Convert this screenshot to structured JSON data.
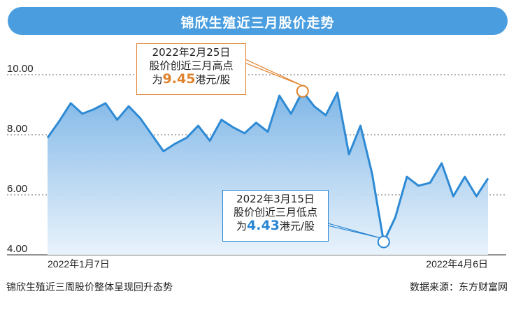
{
  "header": {
    "title": "锦欣生殖近三月股价走势"
  },
  "footer": {
    "caption": "锦欣生殖近三周股价整体呈现回升态势",
    "source": "数据来源：东方财富网"
  },
  "callouts": {
    "high": {
      "date": "2022年2月25日",
      "desc": "股价创近三月高点",
      "prefix": "为",
      "value": "9.45",
      "unit": "港元/股"
    },
    "low": {
      "date": "2022年3月15日",
      "desc": "股价创近三月低点",
      "prefix": "为",
      "value": "4.43",
      "unit": "港元/股"
    }
  },
  "colors": {
    "header": "#4a9ee0",
    "line": "#2e8ad4",
    "high_accent": "#e0832e",
    "low_accent": "#2a86d4"
  },
  "chart_data": {
    "type": "area",
    "title": "锦欣生殖近三月股价走势",
    "x_start_label": "2022年1月7日",
    "x_end_label": "2022年4月6日",
    "y_ticks": [
      "10.00",
      "8.00",
      "6.00",
      "4.00"
    ],
    "ylim": [
      4.0,
      10.0
    ],
    "grid": "horizontal dashed",
    "values": [
      7.9,
      8.45,
      9.05,
      8.7,
      8.85,
      9.05,
      8.5,
      8.95,
      8.55,
      8.0,
      7.45,
      7.7,
      7.9,
      8.3,
      7.8,
      8.5,
      8.25,
      8.05,
      8.4,
      8.1,
      9.3,
      8.7,
      9.45,
      8.95,
      8.65,
      9.4,
      7.35,
      8.3,
      6.7,
      4.43,
      5.25,
      6.6,
      6.3,
      6.4,
      7.05,
      5.95,
      6.6,
      5.95,
      6.55
    ],
    "annotations": [
      {
        "label": "近三月高点",
        "index": 22,
        "value": 9.45
      },
      {
        "label": "近三月低点",
        "index": 29,
        "value": 4.43
      }
    ]
  }
}
